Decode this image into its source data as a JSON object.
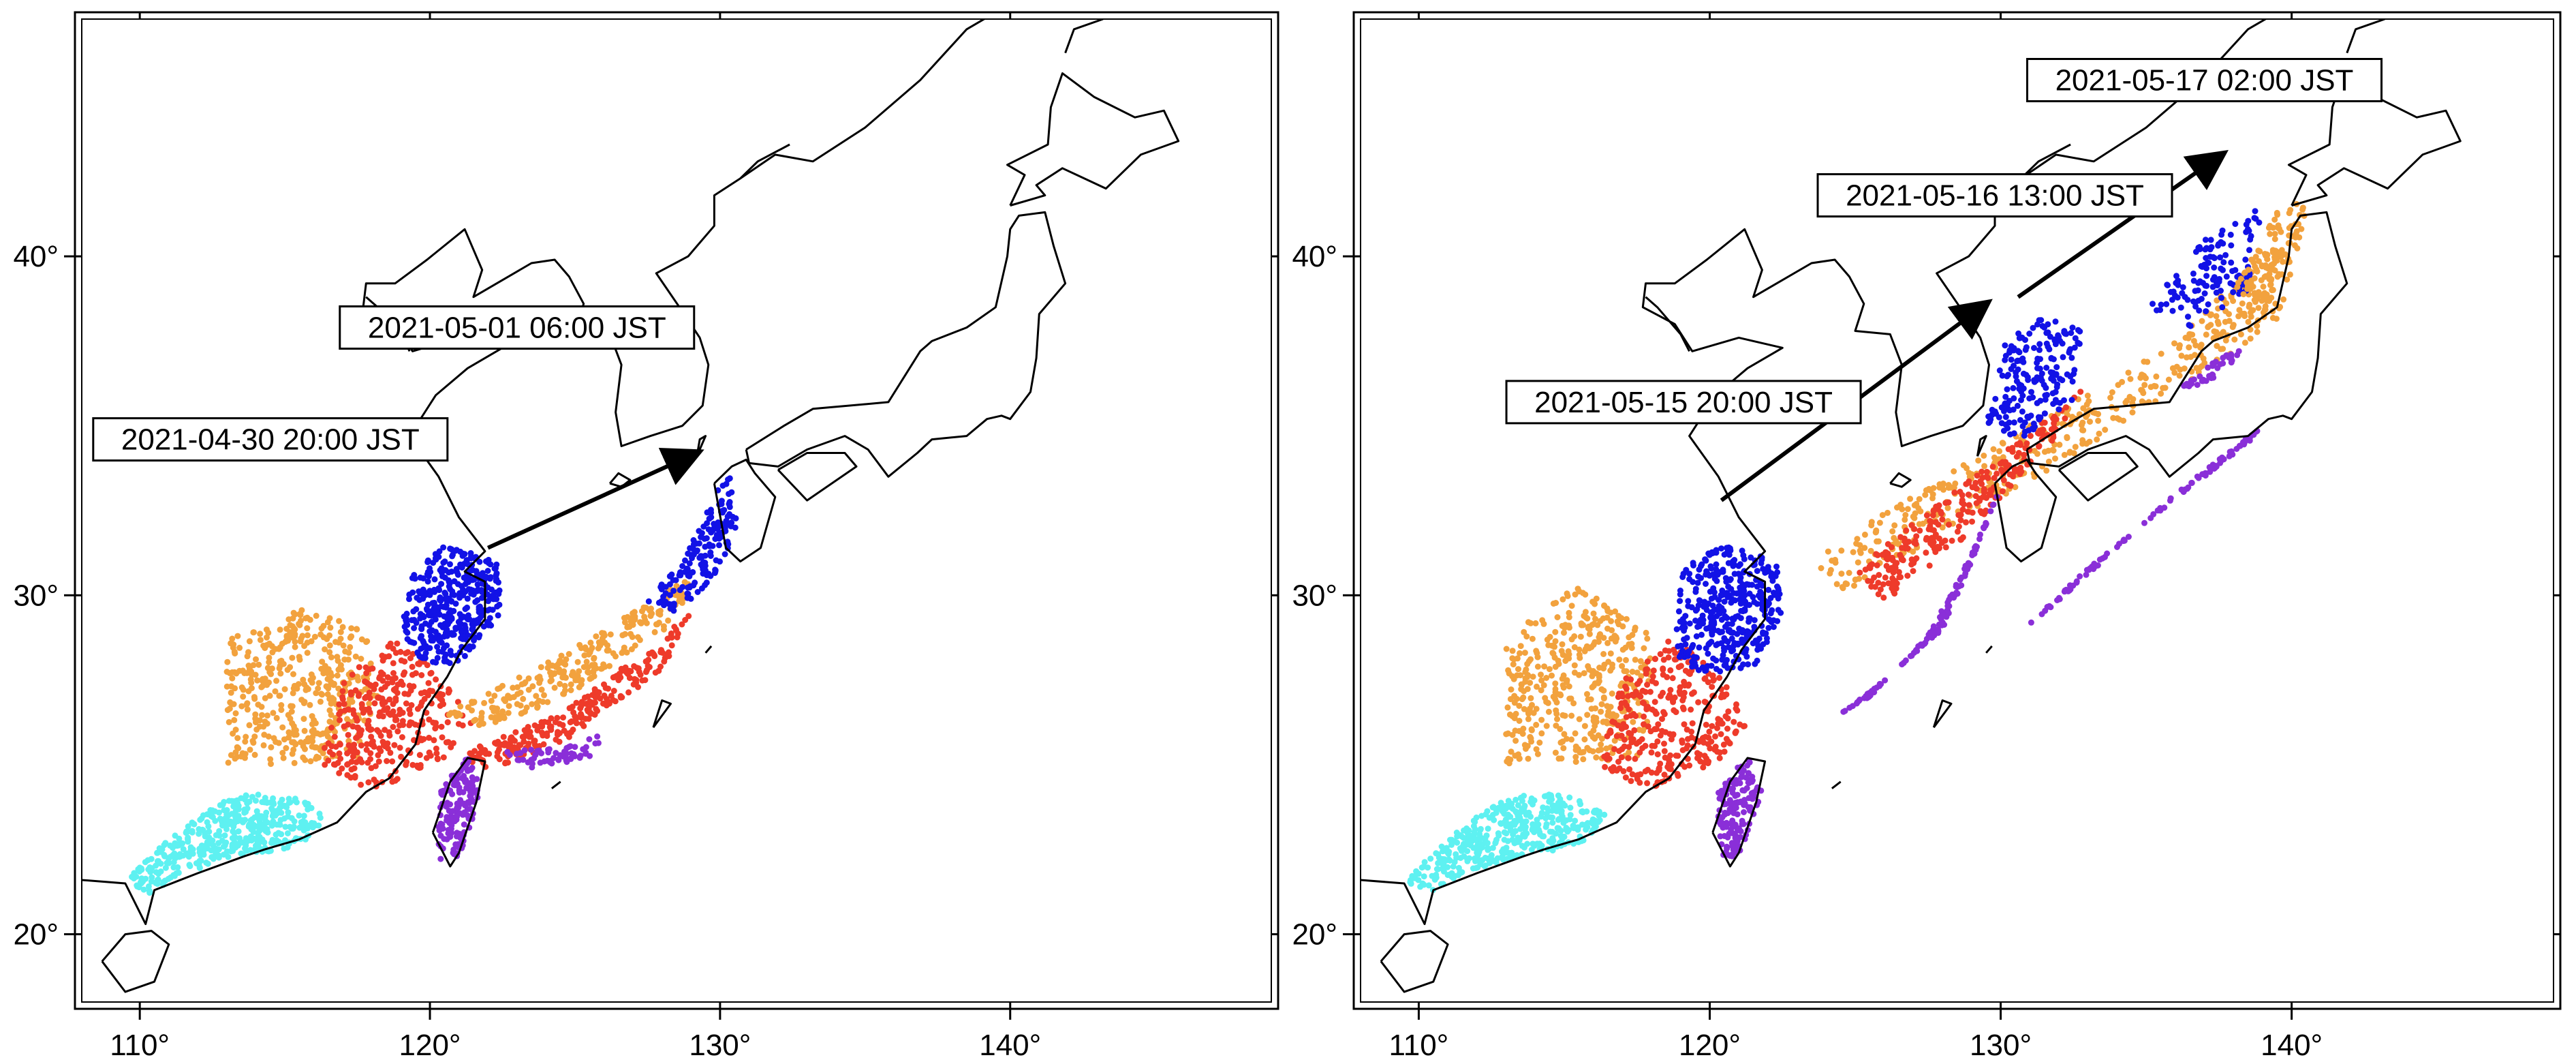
{
  "colors": {
    "cyan": "#5ef1f1",
    "orange": "#f2a23e",
    "red": "#ee3b2a",
    "blue": "#1212e6",
    "purple": "#8a2fd8",
    "arrow": "#000000",
    "coast": "#000000"
  },
  "map_axes": {
    "lon_range": [
      108,
      149
    ],
    "lat_range": [
      18,
      47
    ],
    "lon_ticks": [
      {
        "value": 110,
        "label": "110°"
      },
      {
        "value": 120,
        "label": "120°"
      },
      {
        "value": 130,
        "label": "130°"
      },
      {
        "value": 140,
        "label": "140°"
      }
    ],
    "lat_ticks": [
      {
        "value": 20,
        "label": "20°"
      },
      {
        "value": 30,
        "label": "30°"
      },
      {
        "value": 40,
        "label": "40°"
      }
    ]
  },
  "panels": [
    {
      "id": "left",
      "labels": [
        {
          "text": "2021-04-30 20:00 JST",
          "lon": 114.5,
          "lat": 34.6
        },
        {
          "text": "2021-05-01 06:00 JST",
          "lon": 123.0,
          "lat": 37.9
        }
      ],
      "arrows": [
        {
          "from": [
            122.0,
            31.4
          ],
          "to": [
            129.2,
            34.2
          ]
        }
      ],
      "clusters": [
        {
          "color": "cyan",
          "points": [
            [
              109.5,
              21.6
            ],
            [
              111.0,
              22.8
            ],
            [
              112.5,
              23.8
            ],
            [
              114.0,
              24.2
            ],
            [
              115.5,
              24.0
            ],
            [
              116.5,
              23.5
            ],
            [
              115.5,
              22.6
            ],
            [
              113.5,
              22.3
            ],
            [
              111.5,
              21.8
            ],
            [
              110.3,
              21.2
            ]
          ],
          "count": 420
        },
        {
          "color": "orange",
          "points": [
            [
              113.0,
              25.0
            ],
            [
              113.0,
              28.8
            ],
            [
              115.5,
              29.6
            ],
            [
              117.8,
              29.0
            ],
            [
              118.2,
              27.0
            ],
            [
              117.5,
              25.2
            ],
            [
              115.0,
              25.0
            ]
          ],
          "count": 420
        },
        {
          "color": "red",
          "points": [
            [
              116.2,
              25.0
            ],
            [
              117.0,
              27.5
            ],
            [
              118.8,
              28.8
            ],
            [
              120.5,
              27.5
            ],
            [
              121.5,
              26.2
            ],
            [
              120.5,
              25.2
            ],
            [
              118.0,
              24.2
            ]
          ],
          "count": 320
        },
        {
          "color": "blue",
          "points": [
            [
              119.0,
              28.8
            ],
            [
              119.3,
              30.5
            ],
            [
              120.5,
              31.5
            ],
            [
              122.3,
              31.0
            ],
            [
              122.5,
              29.5
            ],
            [
              121.0,
              28.0
            ],
            [
              119.8,
              28.0
            ]
          ],
          "count": 380
        },
        {
          "color": "orange",
          "points": [
            [
              120.5,
              26.5
            ],
            [
              124.0,
              28.0
            ],
            [
              127.0,
              29.5
            ],
            [
              129.0,
              30.6
            ],
            [
              128.5,
              29.2
            ],
            [
              125.0,
              27.2
            ],
            [
              122.0,
              26.0
            ]
          ],
          "count": 260
        },
        {
          "color": "red",
          "points": [
            [
              121.0,
              25.3
            ],
            [
              124.5,
              26.5
            ],
            [
              127.5,
              28.4
            ],
            [
              129.0,
              29.5
            ],
            [
              128.0,
              27.8
            ],
            [
              124.5,
              25.6
            ],
            [
              122.0,
              24.8
            ]
          ],
          "count": 240
        },
        {
          "color": "blue",
          "points": [
            [
              127.5,
              29.8
            ],
            [
              129.0,
              31.5
            ],
            [
              130.3,
              33.8
            ],
            [
              130.6,
              32.0
            ],
            [
              129.8,
              30.5
            ],
            [
              128.5,
              29.5
            ]
          ],
          "count": 170
        },
        {
          "color": "purple",
          "points": [
            [
              120.3,
              22.2
            ],
            [
              120.3,
              24.2
            ],
            [
              121.3,
              25.3
            ],
            [
              121.8,
              24.2
            ],
            [
              121.0,
              22.3
            ]
          ],
          "count": 150
        },
        {
          "color": "purple",
          "points": [
            [
              122.5,
              25.4
            ],
            [
              124.5,
              25.5
            ],
            [
              126.0,
              25.9
            ],
            [
              125.5,
              25.2
            ],
            [
              123.5,
              24.9
            ]
          ],
          "count": 60
        }
      ]
    },
    {
      "id": "right",
      "labels": [
        {
          "text": "2021-05-15 20:00 JST",
          "lon": 119.1,
          "lat": 35.7
        },
        {
          "text": "2021-05-16 13:00 JST",
          "lon": 129.8,
          "lat": 41.8
        },
        {
          "text": "2021-05-17 02:00 JST",
          "lon": 137.0,
          "lat": 45.2
        }
      ],
      "arrows": [
        {
          "from": [
            120.4,
            32.8
          ],
          "to": [
            129.5,
            38.6
          ]
        },
        {
          "from": [
            130.6,
            38.8
          ],
          "to": [
            137.6,
            43.0
          ]
        }
      ],
      "clusters": [
        {
          "color": "cyan",
          "points": [
            [
              109.5,
              21.6
            ],
            [
              111.0,
              22.8
            ],
            [
              112.5,
              23.8
            ],
            [
              114.0,
              24.2
            ],
            [
              115.5,
              24.0
            ],
            [
              116.5,
              23.5
            ],
            [
              115.5,
              22.6
            ],
            [
              113.5,
              22.3
            ],
            [
              111.5,
              21.8
            ],
            [
              110.3,
              21.2
            ]
          ],
          "count": 420
        },
        {
          "color": "orange",
          "points": [
            [
              113.0,
              25.0
            ],
            [
              113.0,
              28.8
            ],
            [
              115.5,
              30.3
            ],
            [
              117.8,
              29.0
            ],
            [
              118.2,
              27.0
            ],
            [
              117.5,
              25.2
            ],
            [
              115.0,
              25.0
            ]
          ],
          "count": 420
        },
        {
          "color": "red",
          "points": [
            [
              116.2,
              25.0
            ],
            [
              117.0,
              27.5
            ],
            [
              118.8,
              28.8
            ],
            [
              120.5,
              27.5
            ],
            [
              121.5,
              26.2
            ],
            [
              120.5,
              25.2
            ],
            [
              118.0,
              24.2
            ]
          ],
          "count": 320
        },
        {
          "color": "blue",
          "points": [
            [
              118.8,
              28.3
            ],
            [
              119.0,
              30.8
            ],
            [
              120.5,
              31.5
            ],
            [
              122.3,
              31.0
            ],
            [
              122.5,
              29.5
            ],
            [
              121.5,
              27.8
            ],
            [
              119.8,
              27.6
            ]
          ],
          "count": 380
        },
        {
          "color": "orange",
          "points": [
            [
              123.5,
              31.0
            ],
            [
              127.0,
              33.0
            ],
            [
              131.0,
              35.0
            ],
            [
              135.5,
              37.2
            ],
            [
              139.0,
              40.0
            ],
            [
              140.5,
              41.2
            ],
            [
              139.5,
              38.0
            ],
            [
              135.0,
              35.5
            ],
            [
              129.0,
              32.3
            ],
            [
              124.5,
              30.0
            ]
          ],
          "count": 460
        },
        {
          "color": "red",
          "points": [
            [
              125.0,
              30.8
            ],
            [
              128.0,
              32.8
            ],
            [
              131.0,
              34.8
            ],
            [
              133.0,
              36.2
            ],
            [
              131.5,
              34.2
            ],
            [
              128.5,
              31.5
            ],
            [
              126.0,
              29.8
            ]
          ],
          "count": 260
        },
        {
          "color": "blue",
          "points": [
            [
              129.5,
              35.0
            ],
            [
              130.0,
              37.5
            ],
            [
              131.5,
              38.2
            ],
            [
              132.8,
              37.8
            ],
            [
              132.5,
              35.8
            ],
            [
              130.8,
              34.6
            ]
          ],
          "count": 190
        },
        {
          "color": "blue",
          "points": [
            [
              135.0,
              38.5
            ],
            [
              137.0,
              40.5
            ],
            [
              139.0,
              41.5
            ],
            [
              138.5,
              39.0
            ],
            [
              136.5,
              37.8
            ]
          ],
          "count": 130
        },
        {
          "color": "orange",
          "points": [
            [
              138.0,
              39.0
            ],
            [
              139.5,
              41.3
            ],
            [
              140.6,
              41.8
            ],
            [
              140.2,
              40.0
            ],
            [
              138.8,
              38.5
            ]
          ],
          "count": 90
        },
        {
          "color": "purple",
          "points": [
            [
              124.2,
              26.3
            ],
            [
              126.0,
              27.5
            ],
            [
              128.0,
              29.0
            ],
            [
              129.0,
              31.0
            ],
            [
              130.0,
              33.2
            ],
            [
              129.0,
              31.2
            ],
            [
              127.5,
              28.8
            ],
            [
              125.5,
              27.0
            ]
          ],
          "count": 170
        },
        {
          "color": "purple",
          "points": [
            [
              130.8,
              29.0
            ],
            [
              133.0,
              30.8
            ],
            [
              135.5,
              32.5
            ],
            [
              138.5,
              34.5
            ],
            [
              139.0,
              35.0
            ],
            [
              136.0,
              33.0
            ],
            [
              132.5,
              30.2
            ]
          ],
          "count": 160
        },
        {
          "color": "purple",
          "points": [
            [
              136.0,
              36.0
            ],
            [
              137.5,
              37.0
            ],
            [
              138.5,
              37.3
            ],
            [
              137.2,
              36.3
            ]
          ],
          "count": 40
        },
        {
          "color": "purple",
          "points": [
            [
              120.3,
              22.2
            ],
            [
              120.3,
              24.2
            ],
            [
              121.3,
              25.3
            ],
            [
              121.8,
              24.2
            ],
            [
              121.0,
              22.3
            ]
          ],
          "count": 150
        }
      ]
    }
  ]
}
